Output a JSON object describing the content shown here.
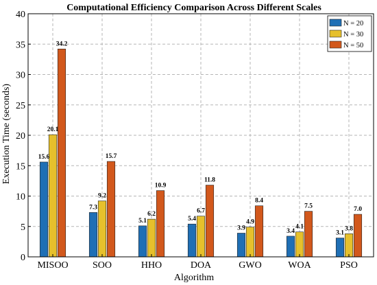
{
  "chart_data": {
    "type": "bar",
    "title": "Computational Efficiency Comparison Across Different Scales",
    "xlabel": "Algorithm",
    "ylabel": "Execution Time (seconds)",
    "ylim": [
      0,
      40
    ],
    "yticks": [
      0,
      5,
      10,
      15,
      20,
      25,
      30,
      35,
      40
    ],
    "grid": true,
    "legend_position": "top-right",
    "categories": [
      "MISOO",
      "SOO",
      "HHO",
      "DOA",
      "GWO",
      "WOA",
      "PSO"
    ],
    "series": [
      {
        "name": "N = 20",
        "color": "#1f6fb5",
        "values": [
          15.6,
          7.3,
          5.1,
          5.4,
          3.9,
          3.4,
          3.1
        ]
      },
      {
        "name": "N = 30",
        "color": "#e6c02c",
        "values": [
          20.1,
          9.2,
          6.2,
          6.7,
          4.9,
          4.1,
          3.8
        ]
      },
      {
        "name": "N = 50",
        "color": "#d2581c",
        "values": [
          34.2,
          15.7,
          10.9,
          11.8,
          8.4,
          7.5,
          7.0
        ]
      }
    ]
  }
}
